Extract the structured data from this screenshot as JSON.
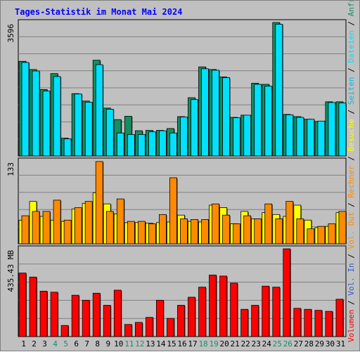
{
  "chart_data": {
    "type": "bar",
    "title": "Tages-Statistik im Monat Mai 2024",
    "categories": [
      "1",
      "2",
      "3",
      "4",
      "5",
      "6",
      "7",
      "8",
      "9",
      "10",
      "11",
      "12",
      "13",
      "14",
      "15",
      "16",
      "17",
      "18",
      "19",
      "20",
      "21",
      "22",
      "23",
      "24",
      "25",
      "26",
      "27",
      "28",
      "29",
      "30",
      "31"
    ],
    "weekend_days": [
      "4",
      "5",
      "11",
      "12",
      "18",
      "19",
      "25",
      "26"
    ],
    "panels": [
      {
        "id": "hits",
        "max_label": "3596",
        "ylim": [
          0,
          3596
        ],
        "grid": true,
        "series": [
          {
            "name": "Anfragen",
            "color": "#138f62",
            "values": [
              2550,
              2330,
              1790,
              2220,
              480,
              1680,
              1480,
              2580,
              1290,
              980,
              1070,
              680,
              690,
              690,
              740,
              1060,
              1570,
              2400,
              2330,
              2130,
              1040,
              1100,
              1960,
              1930,
              3596,
              1120,
              1060,
              990,
              930,
              1460,
              1460
            ]
          },
          {
            "name": "Dateien",
            "color": "#00e0ff",
            "values": [
              2520,
              2290,
              1750,
              2140,
              460,
              1670,
              1450,
              2460,
              1260,
              620,
              580,
              580,
              650,
              680,
              620,
              1050,
              1520,
              2350,
              2310,
              2110,
              1030,
              1100,
              1930,
              1880,
              3550,
              1110,
              1040,
              990,
              940,
              1440,
              1430
            ]
          },
          {
            "name": "Seiten",
            "color": "#00bde8",
            "values": []
          }
        ]
      },
      {
        "id": "visits",
        "max_label": "133",
        "ylim": [
          0,
          133
        ],
        "grid": true,
        "series": [
          {
            "name": "Besuche",
            "color": "#ffff00",
            "values": [
              38,
              68,
              44,
              38,
              36,
              56,
              65,
              82,
              64,
              48,
              34,
              34,
              33,
              34,
              35,
              46,
              36,
              35,
              62,
              58,
              32,
              52,
              40,
              50,
              47,
              44,
              62,
              38,
              26,
              28,
              50
            ]
          },
          {
            "name": "Rechner",
            "color": "#ff8a00",
            "values": [
              45,
              52,
              52,
              70,
              38,
              58,
              68,
              132,
              52,
              72,
              36,
              36,
              32,
              47,
              106,
              40,
              39,
              39,
              64,
              46,
              32,
              45,
              40,
              64,
              40,
              68,
              40,
              24,
              28,
              32,
              52
            ]
          }
        ]
      },
      {
        "id": "volume",
        "max_label": "435.43 MB",
        "ylim": [
          0,
          435.43
        ],
        "grid": true,
        "series": [
          {
            "name": "Vol. Out",
            "color": "#ff8a00",
            "values": []
          },
          {
            "name": "Vol. In",
            "color": "#2e5bd8",
            "values": []
          },
          {
            "name": "Volumen",
            "color": "#ff0000",
            "values": [
              315,
              295,
              225,
              220,
              55,
              205,
              180,
              215,
              155,
              230,
              60,
              70,
              95,
              180,
              90,
              155,
              195,
              245,
              305,
              300,
              265,
              135,
              155,
              250,
              245,
              435,
              140,
              135,
              130,
              125,
              185
            ]
          }
        ]
      }
    ],
    "legend": {
      "placement": "right-vertical",
      "separator": " / ",
      "items": [
        {
          "label": "Volumen",
          "color": "#ff0000"
        },
        {
          "label": "Vol. In",
          "color": "#2e5bd8"
        },
        {
          "label": "Vol. Out",
          "color": "#ff8a00"
        },
        {
          "label": "Rechner",
          "color": "#ff8a00"
        },
        {
          "label": "Besuche",
          "color": "#ffff00"
        },
        {
          "label": "Seiten",
          "color": "#00bde8"
        },
        {
          "label": "Dateien",
          "color": "#00e0ff"
        },
        {
          "label": "Anfragen",
          "color": "#138f62"
        }
      ]
    },
    "colors": {
      "background": "#c0c0c0",
      "plot_border": "#000000",
      "grid": "#808080",
      "title": "#0000ff",
      "weekday_label": "#000000",
      "weekend_label": "#138f62",
      "axis_label": "#000000",
      "separator": "#000000"
    }
  }
}
